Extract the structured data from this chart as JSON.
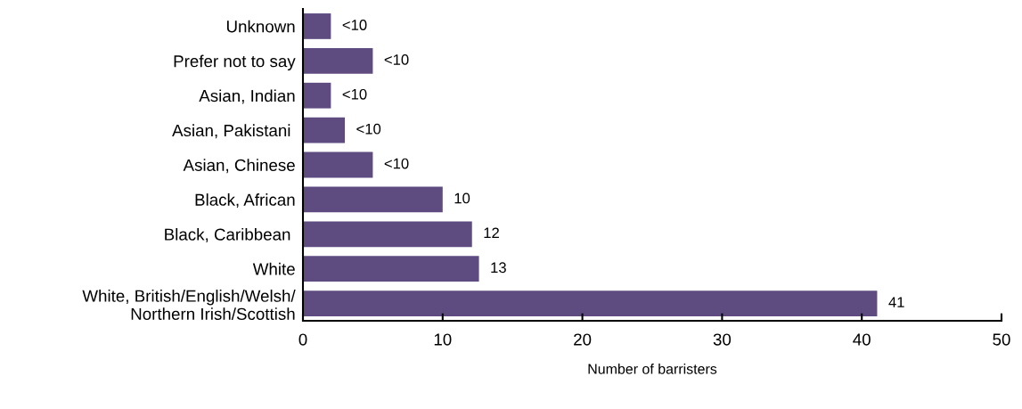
{
  "chart_data": {
    "type": "bar",
    "orientation": "horizontal",
    "xlabel": "Number of barristers",
    "categories": [
      "Unknown",
      "Prefer not to say",
      "Asian, Indian",
      "Asian, Pakistani ",
      "Asian, Chinese",
      "Black, African",
      "Black, Caribbean ",
      "White",
      "White, British/English/Welsh/\nNorthern Irish/Scottish"
    ],
    "values": [
      2,
      5,
      2,
      3,
      5,
      10,
      12.1,
      12.6,
      41.1
    ],
    "value_labels": [
      "<10",
      "<10",
      "<10",
      "<10",
      "<10",
      "10",
      "12",
      "13",
      "41"
    ],
    "color": "#5e4b80",
    "xlim": [
      0,
      50
    ],
    "xticks": [
      0,
      10,
      20,
      30,
      40,
      50
    ],
    "grid": false,
    "legend": false
  }
}
